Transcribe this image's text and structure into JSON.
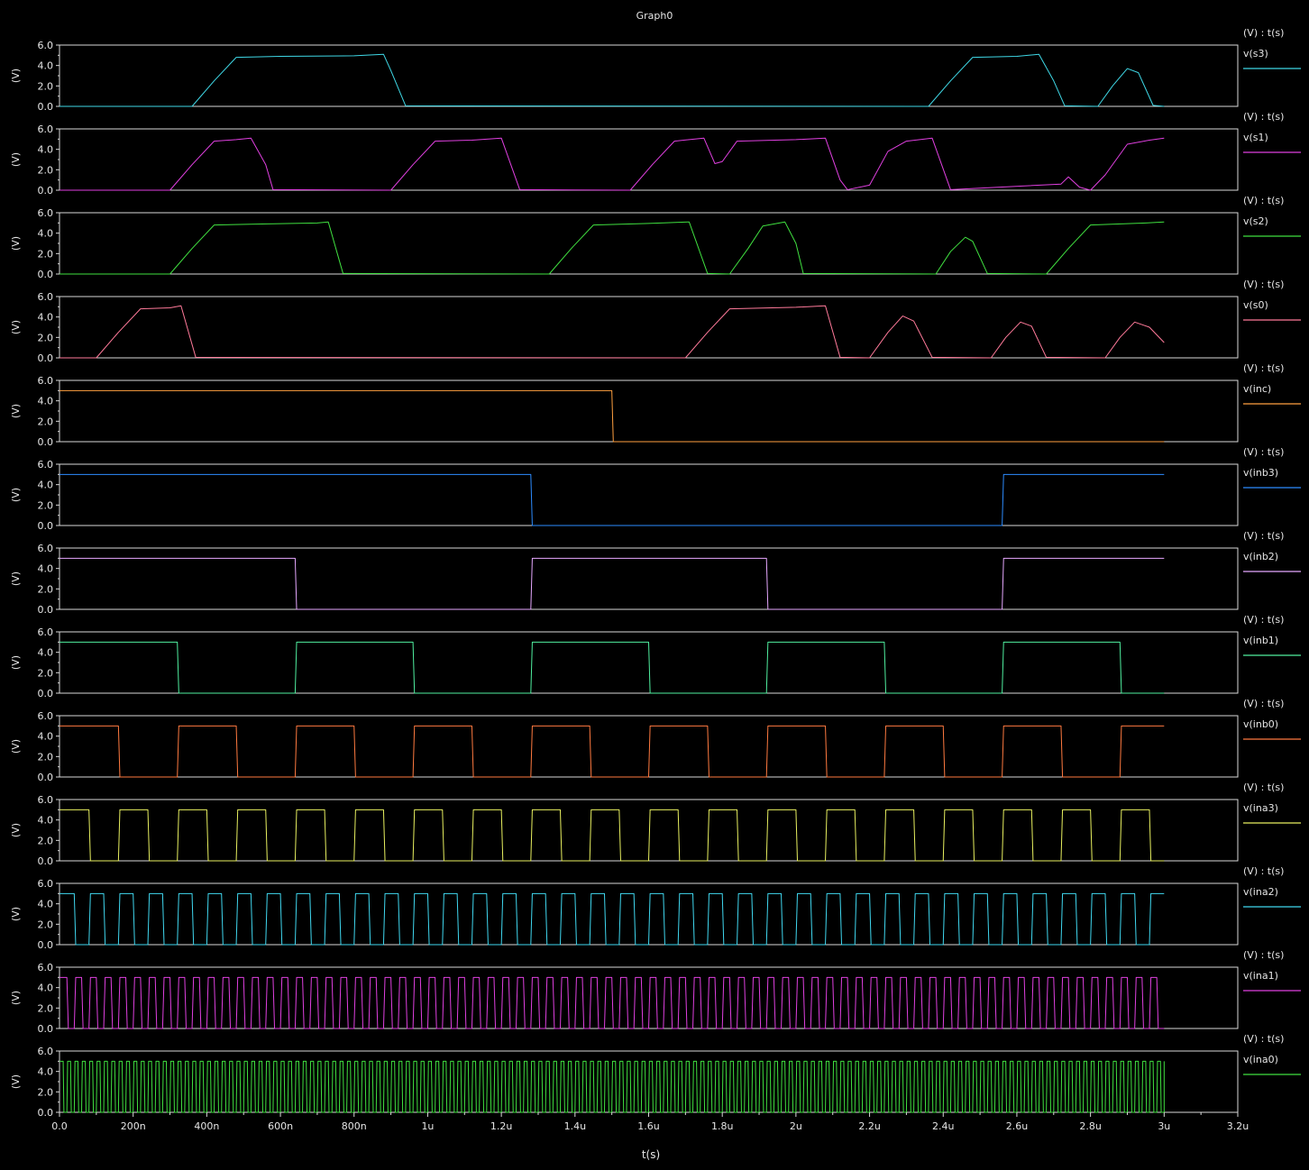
{
  "chart_data": {
    "type": "line",
    "title": "Graph0",
    "xlabel": "t(s)",
    "ylabel": "(V)",
    "axis_caption": "(V) : t(s)",
    "xlim": [
      0,
      3.2
    ],
    "ylim": [
      0,
      6
    ],
    "x_unit": "us",
    "y_ticks": [
      0,
      2,
      4,
      6
    ],
    "y_tick_labels": [
      "0.0",
      "2.0",
      "4.0",
      "6.0"
    ],
    "x_ticks": [
      0,
      0.2,
      0.4,
      0.6,
      0.8,
      1.0,
      1.2,
      1.4,
      1.6,
      1.8,
      2.0,
      2.2,
      2.4,
      2.6,
      2.8,
      3.0,
      3.2
    ],
    "x_tick_labels": [
      "0.0",
      "200n",
      "400n",
      "600n",
      "800n",
      "1u",
      "1.2u",
      "1.4u",
      "1.6u",
      "1.8u",
      "2u",
      "2.2u",
      "2.4u",
      "2.6u",
      "2.8u",
      "3u",
      "3.2u"
    ],
    "grid": false,
    "legend": "right",
    "series": [
      {
        "name": "v(s3)",
        "color": "#3fd8e6",
        "kind": "wave",
        "points": [
          [
            0,
            0
          ],
          [
            0.36,
            0
          ],
          [
            0.42,
            2.5
          ],
          [
            0.48,
            4.8
          ],
          [
            0.6,
            4.9
          ],
          [
            0.8,
            4.95
          ],
          [
            0.88,
            5.1
          ],
          [
            0.9,
            3.5
          ],
          [
            0.94,
            0.05
          ],
          [
            2.36,
            0
          ],
          [
            2.42,
            2.5
          ],
          [
            2.48,
            4.8
          ],
          [
            2.6,
            4.9
          ],
          [
            2.66,
            5.1
          ],
          [
            2.7,
            2.5
          ],
          [
            2.73,
            0.05
          ],
          [
            2.82,
            0
          ],
          [
            2.86,
            2
          ],
          [
            2.9,
            3.7
          ],
          [
            2.93,
            3.3
          ],
          [
            2.97,
            0.1
          ],
          [
            3.0,
            0
          ]
        ]
      },
      {
        "name": "v(s1)",
        "color": "#e040e0",
        "kind": "wave",
        "points": [
          [
            0,
            0
          ],
          [
            0.3,
            0
          ],
          [
            0.36,
            2.5
          ],
          [
            0.42,
            4.8
          ],
          [
            0.48,
            4.95
          ],
          [
            0.52,
            5.1
          ],
          [
            0.56,
            2.5
          ],
          [
            0.58,
            0.05
          ],
          [
            0.9,
            0
          ],
          [
            0.96,
            2.5
          ],
          [
            1.02,
            4.8
          ],
          [
            1.12,
            4.9
          ],
          [
            1.2,
            5.1
          ],
          [
            1.25,
            0.05
          ],
          [
            1.55,
            0
          ],
          [
            1.61,
            2.5
          ],
          [
            1.67,
            4.8
          ],
          [
            1.75,
            5.1
          ],
          [
            1.78,
            2.6
          ],
          [
            1.8,
            2.8
          ],
          [
            1.84,
            4.8
          ],
          [
            2.0,
            4.95
          ],
          [
            2.08,
            5.1
          ],
          [
            2.12,
            1
          ],
          [
            2.14,
            0.05
          ],
          [
            2.2,
            0.5
          ],
          [
            2.25,
            3.8
          ],
          [
            2.3,
            4.8
          ],
          [
            2.37,
            5.1
          ],
          [
            2.42,
            0.05
          ],
          [
            2.72,
            0.6
          ],
          [
            2.74,
            1.3
          ],
          [
            2.77,
            0.3
          ],
          [
            2.8,
            0
          ],
          [
            2.84,
            1.5
          ],
          [
            2.9,
            4.5
          ],
          [
            2.96,
            4.9
          ],
          [
            3.0,
            5.1
          ]
        ]
      },
      {
        "name": "v(s2)",
        "color": "#40e040",
        "kind": "wave",
        "points": [
          [
            0,
            0
          ],
          [
            0.3,
            0
          ],
          [
            0.36,
            2.5
          ],
          [
            0.42,
            4.8
          ],
          [
            0.55,
            4.9
          ],
          [
            0.7,
            5.0
          ],
          [
            0.73,
            5.1
          ],
          [
            0.77,
            0.05
          ],
          [
            1.33,
            0
          ],
          [
            1.39,
            2.5
          ],
          [
            1.45,
            4.8
          ],
          [
            1.6,
            4.95
          ],
          [
            1.71,
            5.1
          ],
          [
            1.76,
            0.05
          ],
          [
            1.82,
            0
          ],
          [
            1.87,
            2.5
          ],
          [
            1.91,
            4.7
          ],
          [
            1.97,
            5.1
          ],
          [
            2.0,
            3
          ],
          [
            2.02,
            0.05
          ],
          [
            2.38,
            0
          ],
          [
            2.42,
            2.2
          ],
          [
            2.46,
            3.6
          ],
          [
            2.48,
            3.2
          ],
          [
            2.52,
            0.05
          ],
          [
            2.68,
            0
          ],
          [
            2.74,
            2.5
          ],
          [
            2.8,
            4.8
          ],
          [
            2.95,
            5.0
          ],
          [
            3.0,
            5.1
          ]
        ]
      },
      {
        "name": "v(s0)",
        "color": "#ff7a9a",
        "kind": "wave",
        "points": [
          [
            0,
            0
          ],
          [
            0.1,
            0
          ],
          [
            0.16,
            2.5
          ],
          [
            0.22,
            4.8
          ],
          [
            0.3,
            4.9
          ],
          [
            0.33,
            5.1
          ],
          [
            0.37,
            0.05
          ],
          [
            1.7,
            0
          ],
          [
            1.76,
            2.5
          ],
          [
            1.82,
            4.8
          ],
          [
            2.0,
            4.95
          ],
          [
            2.08,
            5.1
          ],
          [
            2.12,
            0.05
          ],
          [
            2.2,
            0
          ],
          [
            2.25,
            2.5
          ],
          [
            2.29,
            4.1
          ],
          [
            2.32,
            3.6
          ],
          [
            2.37,
            0.05
          ],
          [
            2.53,
            0
          ],
          [
            2.57,
            2
          ],
          [
            2.61,
            3.5
          ],
          [
            2.64,
            3.1
          ],
          [
            2.68,
            0.05
          ],
          [
            2.84,
            0
          ],
          [
            2.88,
            2
          ],
          [
            2.92,
            3.5
          ],
          [
            2.96,
            3.0
          ],
          [
            3.0,
            1.5
          ]
        ]
      },
      {
        "name": "v(inc)",
        "color": "#ffa040",
        "kind": "digital",
        "period": 3.0,
        "phase": 0,
        "duty": 0.5,
        "end": 3.0,
        "start_low": false
      },
      {
        "name": "v(inb3)",
        "color": "#2d8cff",
        "kind": "digital",
        "period": 2.56,
        "phase": 0,
        "duty": 0.5,
        "end": 3.0,
        "start_low": false
      },
      {
        "name": "v(inb2)",
        "color": "#e6a8ff",
        "kind": "digital",
        "period": 1.28,
        "phase": 0,
        "duty": 0.5,
        "end": 3.0,
        "start_low": false
      },
      {
        "name": "v(inb1)",
        "color": "#50f0a0",
        "kind": "digital",
        "period": 0.64,
        "phase": 0,
        "duty": 0.5,
        "end": 3.0,
        "start_low": false
      },
      {
        "name": "v(inb0)",
        "color": "#ff7a40",
        "kind": "digital",
        "period": 0.32,
        "phase": 0,
        "duty": 0.5,
        "end": 3.0,
        "start_low": false
      },
      {
        "name": "v(ina3)",
        "color": "#e8f060",
        "kind": "digital",
        "period": 0.16,
        "phase": 0,
        "duty": 0.5,
        "end": 3.0,
        "start_low": false
      },
      {
        "name": "v(ina2)",
        "color": "#40d8f0",
        "kind": "digital",
        "period": 0.08,
        "phase": 0,
        "duty": 0.5,
        "end": 3.0,
        "start_low": false
      },
      {
        "name": "v(ina1)",
        "color": "#e040e0",
        "kind": "digital",
        "period": 0.04,
        "phase": 0,
        "duty": 0.5,
        "end": 3.0,
        "start_low": false
      },
      {
        "name": "v(ina0)",
        "color": "#40e040",
        "kind": "digital",
        "period": 0.02,
        "phase": 0,
        "duty": 0.5,
        "end": 3.0,
        "start_low": false
      }
    ]
  }
}
